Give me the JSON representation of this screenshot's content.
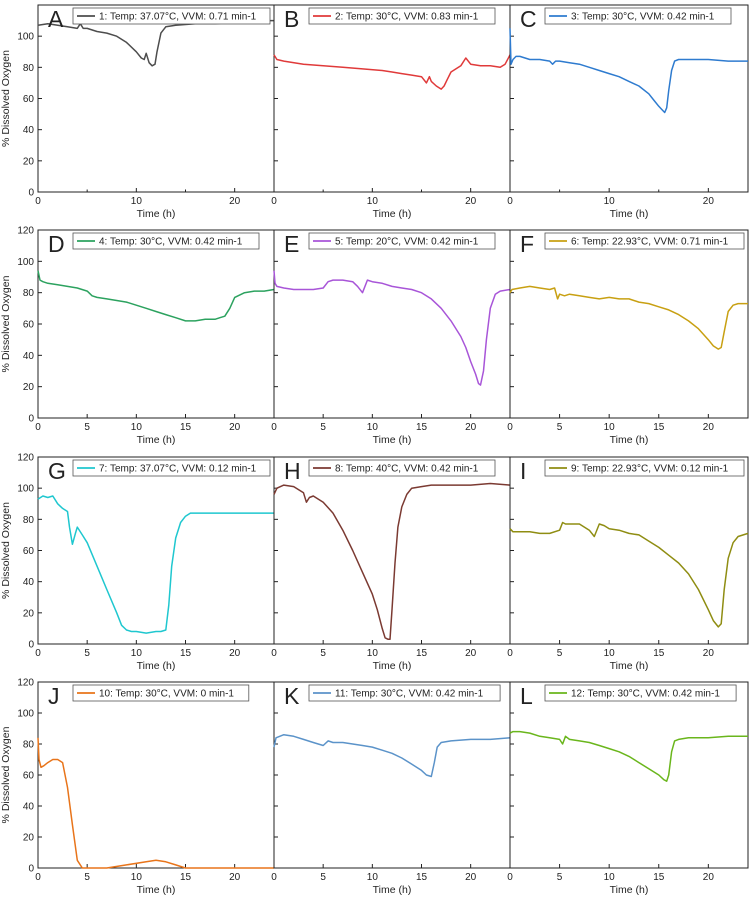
{
  "figure": {
    "ylabel": "% Dissolved Oxygen",
    "xlabel": "Time (h)"
  },
  "chart_data": [
    {
      "type": "line",
      "letter": "A",
      "legend": "1: Temp: 37.07°C, VVM: 0.71 min-1",
      "color": "#4d4d4d",
      "xlim": [
        0,
        24
      ],
      "ylim": [
        0,
        120
      ],
      "xticks": [
        0,
        10,
        20
      ],
      "xticks_minor": [
        5,
        15
      ],
      "yticks": [
        0,
        20,
        40,
        60,
        80,
        100
      ],
      "xlabel": "Time (h)",
      "ylabel": "% Dissolved Oxygen",
      "x": [
        0,
        1,
        2,
        3,
        4,
        4.3,
        4.6,
        5,
        6,
        7,
        8,
        9,
        10,
        10.5,
        10.8,
        11,
        11.3,
        11.6,
        11.9,
        12.1,
        12.5,
        13,
        14,
        16,
        18,
        20,
        22,
        24
      ],
      "y": [
        107,
        108,
        107,
        106,
        105,
        108,
        105,
        105,
        103,
        102,
        100,
        96,
        90,
        86,
        85,
        89,
        83,
        81,
        82,
        90,
        102,
        106,
        107,
        108,
        108,
        109,
        110,
        110
      ]
    },
    {
      "type": "line",
      "letter": "B",
      "legend": "2: Temp: 30°C, VVM: 0.83 min-1",
      "color": "#e03a3a",
      "xlim": [
        0,
        24
      ],
      "ylim": [
        0,
        120
      ],
      "xticks": [
        0,
        10,
        20
      ],
      "xticks_minor": [
        5,
        15
      ],
      "yticks": [
        0,
        20,
        40,
        60,
        80,
        100
      ],
      "xlabel": "Time (h)",
      "x": [
        0,
        0.3,
        1,
        3,
        5,
        7,
        9,
        11,
        12,
        13,
        14,
        15,
        15.5,
        15.8,
        16,
        16.5,
        17,
        17.3,
        17.6,
        18,
        19,
        19.5,
        20,
        21,
        22,
        23,
        23.5,
        24
      ],
      "y": [
        88,
        85,
        84,
        82,
        81,
        80,
        79,
        78,
        77,
        76,
        75,
        74,
        70,
        74,
        71,
        68,
        66,
        68,
        72,
        77,
        81,
        86,
        82,
        81,
        81,
        80,
        82,
        88
      ]
    },
    {
      "type": "line",
      "letter": "C",
      "legend": "3: Temp: 30°C, VVM: 0.42 min-1",
      "color": "#2e7bcf",
      "xlim": [
        0,
        24
      ],
      "ylim": [
        0,
        120
      ],
      "xticks": [
        0,
        10,
        20
      ],
      "xticks_minor": [
        5,
        15
      ],
      "yticks": [
        0,
        20,
        40,
        60,
        80,
        100
      ],
      "xlabel": "Time (h)",
      "x": [
        0,
        0.1,
        0.3,
        0.6,
        1,
        2,
        3,
        4,
        4.3,
        4.6,
        5,
        6,
        7,
        8,
        9,
        10,
        11,
        12,
        13,
        14,
        14.5,
        15,
        15.3,
        15.6,
        15.8,
        16,
        16.3,
        16.6,
        17,
        18,
        20,
        22,
        24
      ],
      "y": [
        105,
        82,
        85,
        87,
        87,
        85,
        85,
        84,
        82,
        84,
        84,
        83,
        82,
        80,
        78,
        76,
        74,
        71,
        68,
        63,
        59,
        55,
        53,
        51,
        54,
        65,
        78,
        84,
        85,
        85,
        85,
        84,
        84
      ]
    },
    {
      "type": "line",
      "letter": "D",
      "legend": "4: Temp: 30°C, VVM: 0.42 min-1",
      "color": "#2ca25f",
      "xlim": [
        0,
        24
      ],
      "ylim": [
        0,
        120
      ],
      "xticks": [
        0,
        5,
        10,
        15,
        20
      ],
      "yticks": [
        0,
        20,
        40,
        60,
        80,
        100,
        120
      ],
      "xlabel": "Time (h)",
      "ylabel": "% Dissolved Oxygen",
      "x": [
        0,
        0.2,
        0.5,
        1,
        2,
        3,
        4,
        5,
        5.5,
        6,
        7,
        8,
        9,
        10,
        11,
        12,
        13,
        14,
        15,
        16,
        17,
        18,
        18.5,
        19,
        19.5,
        20,
        21,
        22,
        23,
        24
      ],
      "y": [
        94,
        88,
        87,
        86,
        85,
        84,
        83,
        81,
        78,
        77,
        76,
        75,
        74,
        72,
        70,
        68,
        66,
        64,
        62,
        62,
        63,
        63,
        64,
        65,
        70,
        77,
        80,
        81,
        81,
        82
      ]
    },
    {
      "type": "line",
      "letter": "E",
      "legend": "5: Temp: 20°C, VVM: 0.42 min-1",
      "color": "#a855d8",
      "xlim": [
        0,
        24
      ],
      "ylim": [
        0,
        120
      ],
      "xticks": [
        0,
        5,
        10,
        15,
        20
      ],
      "yticks": [
        0,
        20,
        40,
        60,
        80,
        100,
        120
      ],
      "xlabel": "Time (h)",
      "x": [
        0,
        0.1,
        0.3,
        1,
        2,
        3,
        4,
        5,
        5.5,
        6,
        7,
        8,
        8.5,
        9,
        9.5,
        10,
        11,
        12,
        13,
        14,
        15,
        16,
        17,
        18,
        19,
        19.5,
        20,
        20.5,
        20.8,
        21,
        21.3,
        21.6,
        22,
        22.5,
        23,
        24
      ],
      "y": [
        94,
        86,
        84,
        83,
        82,
        82,
        82,
        83,
        87,
        88,
        88,
        87,
        84,
        80,
        88,
        87,
        86,
        84,
        83,
        82,
        80,
        76,
        70,
        62,
        52,
        45,
        36,
        28,
        22,
        21,
        30,
        50,
        70,
        79,
        81,
        82
      ]
    },
    {
      "type": "line",
      "letter": "F",
      "legend": "6: Temp: 22.93°C, VVM: 0.71 min-1",
      "color": "#c8a012",
      "xlim": [
        0,
        24
      ],
      "ylim": [
        0,
        120
      ],
      "xticks": [
        0,
        5,
        10,
        15,
        20
      ],
      "yticks": [
        0,
        20,
        40,
        60,
        80,
        100,
        120
      ],
      "xlabel": "Time (h)",
      "x": [
        0,
        0.2,
        1,
        2,
        3,
        4,
        4.5,
        4.8,
        5,
        5.5,
        6,
        7,
        8,
        9,
        10,
        11,
        12,
        13,
        14,
        15,
        16,
        17,
        18,
        19,
        20,
        20.5,
        21,
        21.3,
        21.6,
        22,
        22.5,
        23,
        24
      ],
      "y": [
        80,
        82,
        83,
        84,
        83,
        82,
        83,
        76,
        79,
        78,
        79,
        78,
        77,
        76,
        77,
        76,
        76,
        74,
        73,
        71,
        69,
        66,
        62,
        57,
        50,
        46,
        44,
        45,
        55,
        68,
        72,
        73,
        73
      ]
    },
    {
      "type": "line",
      "letter": "G",
      "legend": "7: Temp: 37.07°C, VVM: 0.12 min-1",
      "color": "#1fc7cf",
      "xlim": [
        0,
        24
      ],
      "ylim": [
        0,
        120
      ],
      "xticks": [
        0,
        5,
        10,
        15,
        20
      ],
      "yticks": [
        0,
        20,
        40,
        60,
        80,
        100,
        120
      ],
      "xlabel": "Time (h)",
      "ylabel": "% Dissolved Oxygen",
      "x": [
        0,
        0.5,
        1,
        1.5,
        2,
        2.5,
        3,
        3.2,
        3.5,
        3.8,
        4,
        4.5,
        5,
        6,
        7,
        8,
        8.5,
        9,
        9.5,
        10,
        11,
        12,
        12.5,
        13,
        13.3,
        13.6,
        14,
        14.5,
        15,
        15.5,
        16,
        18,
        20,
        22,
        24
      ],
      "y": [
        93,
        95,
        94,
        95,
        90,
        87,
        85,
        75,
        64,
        71,
        75,
        70,
        65,
        50,
        35,
        20,
        12,
        9,
        8,
        8,
        7,
        8,
        8,
        9,
        25,
        50,
        68,
        78,
        82,
        84,
        84,
        84,
        84,
        84,
        84
      ]
    },
    {
      "type": "line",
      "letter": "H",
      "legend": "8: Temp: 40°C, VVM: 0.42 min-1",
      "color": "#7b3a32",
      "xlim": [
        0,
        24
      ],
      "ylim": [
        0,
        120
      ],
      "xticks": [
        0,
        5,
        10,
        15,
        20
      ],
      "yticks": [
        0,
        20,
        40,
        60,
        80,
        100,
        120
      ],
      "xlabel": "Time (h)",
      "x": [
        0,
        0.3,
        1,
        2,
        3,
        3.3,
        3.6,
        4,
        5,
        6,
        7,
        8,
        9,
        10,
        10.5,
        11,
        11.3,
        11.6,
        11.8,
        12,
        12.3,
        12.6,
        13,
        13.5,
        14,
        15,
        16,
        18,
        20,
        22,
        24
      ],
      "y": [
        96,
        100,
        102,
        101,
        97,
        91,
        94,
        95,
        91,
        84,
        73,
        60,
        46,
        32,
        22,
        10,
        4,
        3,
        3,
        22,
        52,
        75,
        88,
        96,
        100,
        101,
        102,
        102,
        102,
        103,
        102
      ]
    },
    {
      "type": "line",
      "letter": "I",
      "legend": "9: Temp: 22.93°C, VVM: 0.12 min-1",
      "color": "#8f8d12",
      "xlim": [
        0,
        24
      ],
      "ylim": [
        0,
        120
      ],
      "xticks": [
        0,
        5,
        10,
        15,
        20
      ],
      "yticks": [
        0,
        20,
        40,
        60,
        80,
        100,
        120
      ],
      "xlabel": "Time (h)",
      "x": [
        0,
        0.3,
        1,
        2,
        3,
        4,
        5,
        5.3,
        5.6,
        6,
        7,
        8,
        8.5,
        9,
        9.5,
        10,
        11,
        12,
        13,
        14,
        15,
        16,
        17,
        18,
        19,
        20,
        20.5,
        21,
        21.3,
        21.6,
        22,
        22.5,
        23,
        24
      ],
      "y": [
        74,
        72,
        72,
        72,
        71,
        71,
        73,
        78,
        77,
        77,
        77,
        73,
        69,
        77,
        76,
        74,
        73,
        71,
        70,
        66,
        62,
        57,
        52,
        45,
        35,
        22,
        15,
        11,
        13,
        35,
        55,
        65,
        69,
        71
      ]
    },
    {
      "type": "line",
      "letter": "J",
      "legend": "10: Temp: 30°C, VVM: 0 min-1",
      "color": "#e8741a",
      "xlim": [
        0,
        24
      ],
      "ylim": [
        0,
        120
      ],
      "xticks": [
        0,
        5,
        10,
        15,
        20
      ],
      "yticks": [
        0,
        20,
        40,
        60,
        80,
        100,
        120
      ],
      "xlabel": "Time (h)",
      "ylabel": "% Dissolved Oxygen",
      "x": [
        0,
        0.1,
        0.3,
        0.6,
        1,
        1.5,
        2,
        2.5,
        3,
        3.5,
        4,
        4.5,
        5,
        7,
        9,
        11,
        12,
        13,
        14,
        15,
        16,
        18,
        20,
        22,
        24
      ],
      "y": [
        84,
        70,
        65,
        66,
        68,
        70,
        70,
        68,
        52,
        28,
        5,
        0,
        0,
        0,
        2,
        4,
        5,
        4,
        2,
        0,
        0,
        0,
        0,
        0,
        0
      ]
    },
    {
      "type": "line",
      "letter": "K",
      "legend": "11: Temp: 30°C, VVM: 0.42 min-1",
      "color": "#5b93c9",
      "xlim": [
        0,
        24
      ],
      "ylim": [
        0,
        120
      ],
      "xticks": [
        0,
        5,
        10,
        15,
        20
      ],
      "yticks": [
        0,
        20,
        40,
        60,
        80,
        100,
        120
      ],
      "xlabel": "Time (h)",
      "x": [
        0,
        0.2,
        1,
        2,
        3,
        4,
        5,
        5.5,
        6,
        7,
        8,
        9,
        10,
        11,
        12,
        13,
        14,
        15,
        15.5,
        16,
        16.3,
        16.6,
        17,
        18,
        20,
        22,
        24
      ],
      "y": [
        78,
        84,
        86,
        85,
        83,
        81,
        79,
        82,
        81,
        81,
        80,
        79,
        78,
        76,
        74,
        71,
        67,
        63,
        60,
        59,
        68,
        78,
        81,
        82,
        83,
        83,
        84
      ]
    },
    {
      "type": "line",
      "letter": "L",
      "legend": "12: Temp: 30°C, VVM: 0.42 min-1",
      "color": "#6ab61c",
      "xlim": [
        0,
        24
      ],
      "ylim": [
        0,
        120
      ],
      "xticks": [
        0,
        5,
        10,
        15,
        20
      ],
      "yticks": [
        0,
        20,
        40,
        60,
        80,
        100,
        120
      ],
      "xlabel": "Time (h)",
      "x": [
        0,
        0.3,
        1,
        2,
        3,
        4,
        5,
        5.3,
        5.6,
        6,
        7,
        8,
        9,
        10,
        11,
        12,
        13,
        14,
        15,
        15.5,
        15.8,
        16,
        16.3,
        16.6,
        17,
        18,
        20,
        22,
        24
      ],
      "y": [
        87,
        88,
        88,
        87,
        85,
        84,
        83,
        80,
        85,
        83,
        82,
        81,
        79,
        77,
        75,
        72,
        68,
        64,
        60,
        57,
        56,
        60,
        75,
        82,
        83,
        84,
        84,
        85,
        85
      ]
    }
  ]
}
